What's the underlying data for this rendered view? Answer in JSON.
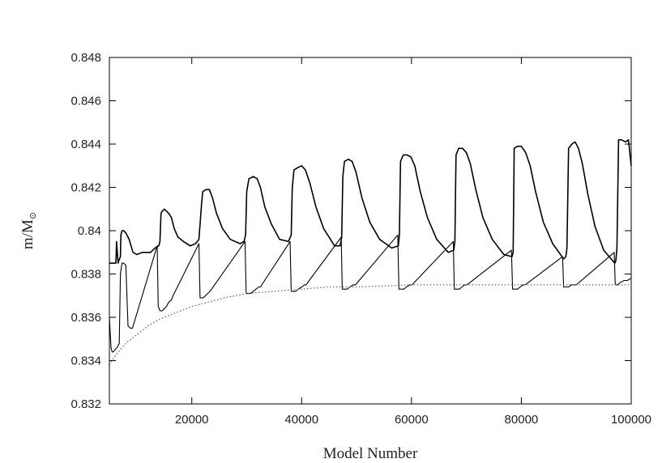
{
  "chart_data": {
    "type": "line",
    "title": "",
    "xlabel": "Model Number",
    "ylabel": "m/M",
    "ylabel_subscript": "⊙",
    "xlim": [
      5000,
      100000
    ],
    "ylim": [
      0.832,
      0.848
    ],
    "x_ticks": [
      20000,
      40000,
      60000,
      80000,
      100000
    ],
    "x_tick_labels": [
      "20000",
      "40000",
      "60000",
      "80000",
      "100000"
    ],
    "y_ticks": [
      0.832,
      0.834,
      0.836,
      0.838,
      0.84,
      0.842,
      0.844,
      0.846,
      0.848
    ],
    "y_tick_labels": [
      "0.832",
      "0.834",
      "0.836",
      "0.838",
      "0.84",
      "0.842",
      "0.844",
      "0.846",
      "0.848"
    ],
    "grid": false,
    "legend": "none",
    "series": [
      {
        "style": "solid",
        "color": "#000000",
        "x": [
          5000,
          6200,
          6300,
          6600,
          6700,
          7000,
          7100,
          7300,
          7600,
          8000,
          8600,
          9300,
          10000,
          11000,
          12500,
          13300,
          14000,
          14200,
          14400,
          14600,
          15000,
          15800,
          16300,
          16800,
          17500,
          18500,
          19700,
          20700,
          21300,
          21500,
          21800,
          22000,
          22600,
          23200,
          23800,
          24500,
          25600,
          27000,
          28800,
          29500,
          29800,
          30000,
          30400,
          31200,
          31900,
          32500,
          33300,
          34500,
          36000,
          37600,
          38100,
          38300,
          38600,
          39200,
          40000,
          40700,
          41500,
          42600,
          44000,
          46000,
          47000,
          47300,
          47500,
          47800,
          48500,
          49200,
          49900,
          51000,
          52400,
          54200,
          56400,
          57600,
          57800,
          58000,
          58500,
          59200,
          59900,
          60600,
          61600,
          62900,
          64600,
          66700,
          67700,
          67900,
          68100,
          68600,
          69300,
          70000,
          70700,
          71700,
          73000,
          74700,
          76800,
          78300,
          78500,
          78700,
          79300,
          80000,
          80800,
          81600,
          82600,
          84000,
          85700,
          87700,
          88100,
          88300,
          88600,
          89200,
          89800,
          90400,
          91100,
          92100,
          93400,
          95000,
          97000,
          97200,
          97400,
          97700,
          98200,
          99000,
          99500,
          100000
        ],
        "y": [
          0.8385,
          0.8385,
          0.8395,
          0.8385,
          0.8386,
          0.8388,
          0.8398,
          0.84,
          0.84,
          0.8399,
          0.8396,
          0.839,
          0.8389,
          0.839,
          0.839,
          0.8392,
          0.8393,
          0.8395,
          0.8408,
          0.8409,
          0.841,
          0.8408,
          0.8406,
          0.8401,
          0.8397,
          0.8395,
          0.8393,
          0.8394,
          0.8396,
          0.8403,
          0.8413,
          0.8418,
          0.8419,
          0.8419,
          0.8415,
          0.8408,
          0.8401,
          0.8396,
          0.8394,
          0.8395,
          0.8398,
          0.8418,
          0.8424,
          0.8425,
          0.8424,
          0.842,
          0.8411,
          0.8403,
          0.8396,
          0.8395,
          0.8398,
          0.842,
          0.8428,
          0.8429,
          0.843,
          0.8428,
          0.8422,
          0.8411,
          0.8401,
          0.8393,
          0.8393,
          0.8397,
          0.8425,
          0.8432,
          0.8433,
          0.8432,
          0.8427,
          0.8415,
          0.8404,
          0.8396,
          0.8392,
          0.8393,
          0.8398,
          0.8432,
          0.8435,
          0.8435,
          0.8434,
          0.843,
          0.8418,
          0.8406,
          0.8396,
          0.839,
          0.8391,
          0.8395,
          0.8435,
          0.8438,
          0.8438,
          0.8436,
          0.8431,
          0.8419,
          0.8406,
          0.8396,
          0.8389,
          0.8388,
          0.839,
          0.8438,
          0.8439,
          0.8439,
          0.8436,
          0.843,
          0.8418,
          0.8404,
          0.8394,
          0.8387,
          0.8388,
          0.8392,
          0.8438,
          0.844,
          0.8441,
          0.8438,
          0.8431,
          0.8417,
          0.8402,
          0.8391,
          0.8385,
          0.8386,
          0.8392,
          0.8442,
          0.8442,
          0.8441,
          0.8442,
          0.843
        ]
      },
      {
        "style": "solid-thin",
        "color": "#000000",
        "x": [
          5000,
          5300,
          5500,
          5700,
          6000,
          6400,
          6800,
          7000,
          7300,
          7600,
          8000,
          8400,
          8800,
          9200,
          13700,
          13900,
          14200,
          14600,
          15000,
          15400,
          15800,
          16300,
          16600,
          21300,
          21500,
          21700,
          22100,
          22500,
          22900,
          23300,
          23600,
          29700,
          29900,
          30200,
          30700,
          31200,
          31700,
          32200,
          32500,
          37900,
          38100,
          38400,
          38900,
          39400,
          40000,
          40500,
          40800,
          47200,
          47400,
          47800,
          48300,
          48800,
          49400,
          49800,
          57500,
          57700,
          58100,
          58600,
          59100,
          59700,
          60100,
          67600,
          67800,
          68200,
          68700,
          69200,
          69700,
          70100,
          78200,
          78400,
          78800,
          79300,
          79800,
          80300,
          80700,
          87500,
          87700,
          88100,
          88600,
          89100,
          89600,
          90000,
          96900,
          97100,
          97500,
          98000,
          98700,
          99300,
          100000
        ],
        "y": [
          0.836,
          0.8346,
          0.8344,
          0.8344,
          0.8345,
          0.8346,
          0.8348,
          0.838,
          0.8385,
          0.8385,
          0.8384,
          0.8356,
          0.8355,
          0.8355,
          0.8393,
          0.8365,
          0.8363,
          0.8363,
          0.8364,
          0.8365,
          0.8367,
          0.8368,
          0.837,
          0.8394,
          0.8369,
          0.8369,
          0.8369,
          0.837,
          0.8371,
          0.8372,
          0.8373,
          0.8395,
          0.8371,
          0.8371,
          0.8371,
          0.8372,
          0.8373,
          0.8374,
          0.8374,
          0.8395,
          0.8372,
          0.8372,
          0.8372,
          0.8373,
          0.8374,
          0.8375,
          0.8375,
          0.8397,
          0.8373,
          0.8373,
          0.8373,
          0.8374,
          0.8375,
          0.8375,
          0.8398,
          0.8373,
          0.8373,
          0.8373,
          0.8374,
          0.8375,
          0.8375,
          0.8395,
          0.8373,
          0.8373,
          0.8373,
          0.8374,
          0.8375,
          0.8375,
          0.8391,
          0.8373,
          0.8373,
          0.8373,
          0.8374,
          0.8375,
          0.8375,
          0.8388,
          0.8374,
          0.8374,
          0.8374,
          0.8375,
          0.8375,
          0.8375,
          0.839,
          0.8375,
          0.8375,
          0.8376,
          0.8377,
          0.8377,
          0.8378
        ]
      },
      {
        "style": "dotted",
        "color": "#666666",
        "x": [
          5000,
          6000,
          8000,
          10000,
          12000,
          14000,
          16000,
          18000,
          20000,
          23000,
          26000,
          30000,
          35000,
          40000,
          45000,
          50000,
          60000,
          70000,
          80000,
          90000,
          100000
        ],
        "y": [
          0.8338,
          0.8342,
          0.8348,
          0.8352,
          0.8356,
          0.8359,
          0.8361,
          0.8363,
          0.8365,
          0.8367,
          0.8369,
          0.8371,
          0.8372,
          0.8373,
          0.8374,
          0.8374,
          0.8375,
          0.8375,
          0.8375,
          0.8375,
          0.8375
        ]
      }
    ]
  }
}
